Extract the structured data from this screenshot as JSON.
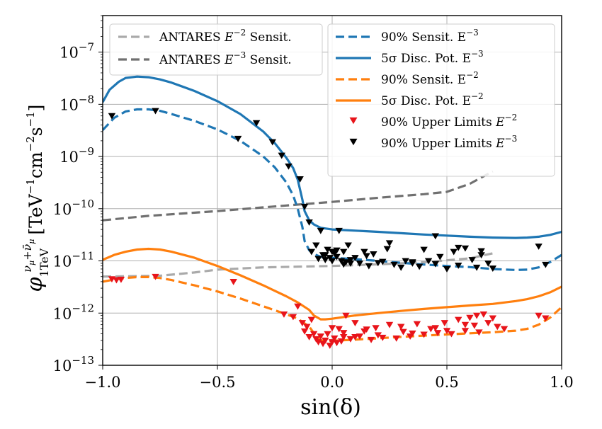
{
  "chart_data": {
    "type": "line",
    "xlabel": "sin(δ)",
    "ylabel": {
      "base": "φ",
      "sub": "1TeV",
      "sup": "ν",
      "sup_sub": "μ",
      "sup_plus": "+",
      "sup_bar": "ν̄",
      "sup_bar_sub": "μ",
      "unit_open": "[TeV",
      "unit_exp1": "−1",
      "unit_cm": "cm",
      "unit_exp2": "−2",
      "unit_s": "s",
      "unit_exp3": "−1",
      "unit_close": "]"
    },
    "xlim": [
      -1.0,
      1.0
    ],
    "ylim_log10": [
      -13,
      -6.3
    ],
    "y_scale": "log",
    "grid": true,
    "legend_placement": "top-right, two boxes",
    "x_ticks": [
      {
        "v": -1.0,
        "label": "−1.0"
      },
      {
        "v": -0.5,
        "label": "−0.5"
      },
      {
        "v": 0.0,
        "label": "0.0"
      },
      {
        "v": 0.5,
        "label": "0.5"
      },
      {
        "v": 1.0,
        "label": "1.0"
      }
    ],
    "y_ticks": [
      {
        "exp": -13,
        "base": "10",
        "exp_label": "−13"
      },
      {
        "exp": -12,
        "base": "10",
        "exp_label": "−12"
      },
      {
        "exp": -11,
        "base": "10",
        "exp_label": "−11"
      },
      {
        "exp": -10,
        "base": "10",
        "exp_label": "−10"
      },
      {
        "exp": -9,
        "base": "10",
        "exp_label": "−9"
      },
      {
        "exp": -8,
        "base": "10",
        "exp_label": "−8"
      },
      {
        "exp": -7,
        "base": "10",
        "exp_label": "−7"
      }
    ],
    "legend_left": [
      {
        "series": "antares_e2",
        "text": "ANTARES ",
        "math": "E",
        "sup": "−2",
        "tail": " Sensit."
      },
      {
        "series": "antares_e3",
        "text": "ANTARES ",
        "math": "E",
        "sup": "−3",
        "tail": " Sensit."
      }
    ],
    "legend_right": [
      {
        "series": "sens_e3",
        "text": "90% Sensit. E",
        "sup": "−3"
      },
      {
        "series": "disc_e3",
        "text": "5σ Disc. Pot. E",
        "sup": "−3"
      },
      {
        "series": "sens_e2",
        "text": "90% Sensit. E",
        "sup": "−2"
      },
      {
        "series": "disc_e2",
        "text": "5σ Disc. Pot. E",
        "sup": "−2"
      },
      {
        "series": "ul_e2",
        "text": "90% Upper Limits ",
        "math": "E",
        "sup": "−2"
      },
      {
        "series": "ul_e3",
        "text": "90% Upper Limits ",
        "math": "E",
        "sup": "−3"
      }
    ],
    "colors": {
      "antares_e2": "#aaaaaa",
      "antares_e3": "#707070",
      "blue": "#1f77b4",
      "orange": "#ff7f0e",
      "red": "#e8141a",
      "black": "#000000"
    },
    "series": [
      {
        "id": "antares_e2",
        "style": "dashed",
        "color": "#aaaaaa",
        "x": [
          -1.0,
          -0.75,
          -0.6,
          -0.5,
          -0.3,
          0.0,
          0.2,
          0.4,
          0.6,
          0.7
        ],
        "y": [
          5e-12,
          5.2e-12,
          6e-12,
          6.8e-12,
          7.5e-12,
          8e-12,
          8.6e-12,
          9.4e-12,
          1.12e-11,
          1.4e-11
        ]
      },
      {
        "id": "antares_e3",
        "style": "dashed",
        "color": "#707070",
        "x": [
          -1.0,
          -0.8,
          -0.5,
          -0.2,
          0.0,
          0.2,
          0.4,
          0.5,
          0.6,
          0.7
        ],
        "y": [
          6e-11,
          7.3e-11,
          9e-11,
          1.15e-10,
          1.35e-10,
          1.62e-10,
          1.9e-10,
          2.1e-10,
          3e-10,
          5.2e-10
        ]
      },
      {
        "id": "sens_e3",
        "style": "dashed",
        "color": "#1f77b4",
        "x": [
          -1.0,
          -0.95,
          -0.9,
          -0.85,
          -0.8,
          -0.75,
          -0.7,
          -0.6,
          -0.5,
          -0.4,
          -0.3,
          -0.25,
          -0.2,
          -0.17,
          -0.15,
          -0.13,
          -0.12,
          -0.1,
          -0.08,
          -0.05,
          0.0,
          0.1,
          0.2,
          0.3,
          0.4,
          0.5,
          0.6,
          0.7,
          0.8,
          0.85,
          0.9,
          0.95,
          1.0
        ],
        "y": [
          3.2e-09,
          5.5e-09,
          7.3e-09,
          8e-09,
          8e-09,
          7.5e-09,
          6.5e-09,
          4.8e-09,
          3.3e-09,
          2e-09,
          1e-09,
          6.2e-10,
          3.2e-10,
          1.8e-10,
          1e-10,
          4.5e-11,
          2.4e-11,
          1.6e-11,
          1.35e-11,
          1.2e-11,
          1.15e-11,
          1.08e-11,
          1e-11,
          9.2e-12,
          8.5e-12,
          8e-12,
          7.6e-12,
          7e-12,
          6.7e-12,
          6.8e-12,
          7.5e-12,
          9.5e-12,
          1.3e-11
        ]
      },
      {
        "id": "disc_e3",
        "style": "solid",
        "color": "#1f77b4",
        "x": [
          -1.0,
          -0.97,
          -0.93,
          -0.9,
          -0.85,
          -0.8,
          -0.75,
          -0.7,
          -0.6,
          -0.5,
          -0.4,
          -0.3,
          -0.25,
          -0.2,
          -0.17,
          -0.15,
          -0.13,
          -0.12,
          -0.1,
          -0.08,
          -0.05,
          0.0,
          0.1,
          0.2,
          0.3,
          0.4,
          0.5,
          0.6,
          0.7,
          0.8,
          0.85,
          0.9,
          0.95,
          1.0
        ],
        "y": [
          1.1e-08,
          1.9e-08,
          2.7e-08,
          3.2e-08,
          3.4e-08,
          3.3e-08,
          3e-08,
          2.6e-08,
          1.8e-08,
          1.15e-08,
          6.5e-09,
          3e-09,
          1.8e-09,
          9.5e-10,
          6e-10,
          3.6e-10,
          1.5e-10,
          9e-11,
          6e-11,
          5e-11,
          4.3e-11,
          4e-11,
          3.8e-11,
          3.6e-11,
          3.4e-11,
          3.2e-11,
          3.05e-11,
          2.9e-11,
          2.8e-11,
          2.75e-11,
          2.8e-11,
          2.9e-11,
          3.15e-11,
          3.6e-11
        ]
      },
      {
        "id": "sens_e2",
        "style": "dashed",
        "color": "#ff7f0e",
        "x": [
          -1.0,
          -0.95,
          -0.9,
          -0.85,
          -0.8,
          -0.75,
          -0.7,
          -0.6,
          -0.5,
          -0.4,
          -0.3,
          -0.2,
          -0.15,
          -0.1,
          -0.07,
          -0.05,
          -0.03,
          0.0,
          0.1,
          0.2,
          0.3,
          0.4,
          0.5,
          0.6,
          0.7,
          0.8,
          0.85,
          0.9,
          0.95,
          1.0
        ],
        "y": [
          4e-12,
          4.4e-12,
          4.7e-12,
          4.9e-12,
          4.9e-12,
          4.7e-12,
          4.3e-12,
          3.4e-12,
          2.6e-12,
          1.9e-12,
          1.35e-12,
          9.5e-13,
          7.8e-13,
          5.5e-13,
          3.6e-13,
          3e-13,
          2.9e-13,
          2.95e-13,
          3.1e-13,
          3.3e-13,
          3.5e-13,
          3.7e-13,
          3.9e-13,
          4.1e-13,
          4.3e-13,
          4.6e-13,
          5e-13,
          6e-13,
          8.2e-13,
          1.3e-12
        ]
      },
      {
        "id": "disc_e2",
        "style": "solid",
        "color": "#ff7f0e",
        "x": [
          -1.0,
          -0.95,
          -0.9,
          -0.85,
          -0.8,
          -0.75,
          -0.7,
          -0.6,
          -0.5,
          -0.4,
          -0.3,
          -0.2,
          -0.15,
          -0.1,
          -0.08,
          -0.05,
          -0.03,
          0.0,
          0.1,
          0.2,
          0.3,
          0.4,
          0.5,
          0.6,
          0.7,
          0.8,
          0.85,
          0.9,
          0.95,
          1.0
        ],
        "y": [
          1.05e-11,
          1.3e-11,
          1.5e-11,
          1.65e-11,
          1.7e-11,
          1.65e-11,
          1.5e-11,
          1.15e-11,
          8e-12,
          5.3e-12,
          3.4e-12,
          2.1e-12,
          1.6e-12,
          1.15e-12,
          9e-13,
          7.6e-13,
          7.6e-13,
          7.8e-13,
          9e-13,
          1e-12,
          1.1e-12,
          1.2e-12,
          1.3e-12,
          1.4e-12,
          1.5e-12,
          1.7e-12,
          1.85e-12,
          2.1e-12,
          2.5e-12,
          3.2e-12
        ]
      }
    ],
    "markers": [
      {
        "id": "ul_e3",
        "color": "#000000",
        "marker": "triangle-down",
        "x": [
          -0.96,
          -0.77,
          -0.41,
          -0.33,
          -0.26,
          -0.22,
          -0.19,
          -0.14,
          -0.12,
          -0.1,
          -0.09,
          -0.07,
          -0.06,
          -0.05,
          -0.04,
          -0.03,
          -0.02,
          -0.01,
          0.0,
          0.01,
          0.02,
          0.03,
          0.04,
          0.05,
          0.06,
          0.07,
          0.08,
          0.1,
          0.12,
          0.14,
          0.16,
          0.18,
          0.2,
          0.22,
          0.24,
          0.27,
          0.3,
          0.32,
          0.35,
          0.38,
          0.4,
          0.42,
          0.45,
          0.47,
          0.5,
          0.53,
          0.55,
          0.58,
          0.61,
          0.63,
          0.65,
          0.68,
          0.7,
          0.02,
          0.08,
          0.15,
          0.25,
          0.35,
          0.45,
          0.55,
          0.65,
          0.9,
          0.93,
          -0.03,
          0.0,
          0.05
        ],
        "y": [
          6e-09,
          7.5e-09,
          2.2e-09,
          4.4e-09,
          1.9e-09,
          1.05e-09,
          6.5e-10,
          3.7e-10,
          1.1e-10,
          5.5e-11,
          1.5e-11,
          2e-11,
          1.1e-11,
          3.8e-11,
          1.3e-11,
          1.05e-11,
          1.65e-11,
          1.15e-11,
          1e-11,
          1.4e-11,
          1.2e-11,
          3.8e-11,
          1e-11,
          1.5e-11,
          9.5e-12,
          2e-11,
          1.05e-11,
          1.15e-11,
          9e-12,
          1.5e-11,
          8e-12,
          1.35e-11,
          9.2e-12,
          9.7e-12,
          1.7e-11,
          8.5e-12,
          7.5e-12,
          1e-11,
          9e-12,
          7.8e-12,
          1.65e-11,
          1e-11,
          8.8e-12,
          1.2e-11,
          7e-12,
          1.5e-11,
          8.2e-12,
          1.75e-11,
          1.05e-11,
          7.5e-12,
          1.55e-11,
          9e-12,
          7.2e-12,
          1.6e-11,
          9e-12,
          1.25e-11,
          2.2e-11,
          9.5e-12,
          3e-11,
          1.8e-11,
          1.3e-11,
          1.9e-11,
          8.5e-12,
          1.3e-11,
          1.5e-11,
          8.6e-12
        ]
      },
      {
        "id": "ul_e2",
        "color": "#e8141a",
        "marker": "triangle-down",
        "x": [
          -0.96,
          -0.94,
          -0.92,
          -0.77,
          -0.43,
          -0.21,
          -0.17,
          -0.15,
          -0.13,
          -0.12,
          -0.11,
          -0.1,
          -0.09,
          -0.08,
          -0.07,
          -0.06,
          -0.05,
          -0.04,
          -0.03,
          -0.02,
          -0.01,
          0.0,
          0.01,
          0.02,
          0.03,
          0.04,
          0.05,
          0.06,
          0.08,
          0.1,
          0.12,
          0.14,
          0.17,
          0.19,
          0.22,
          0.25,
          0.28,
          0.31,
          0.34,
          0.37,
          0.4,
          0.43,
          0.46,
          0.49,
          0.52,
          0.55,
          0.58,
          0.6,
          0.62,
          0.64,
          0.66,
          0.68,
          0.7,
          0.72,
          0.75,
          0.9,
          0.93,
          0.0,
          0.05,
          0.1,
          0.15,
          0.2,
          0.3,
          0.35,
          0.45,
          0.5,
          0.58,
          0.63
        ],
        "y": [
          4.5e-12,
          4.3e-12,
          4.4e-12,
          5e-12,
          4e-12,
          9.5e-13,
          8.5e-13,
          1.35e-12,
          6.5e-13,
          4.5e-13,
          5.5e-13,
          3.5e-13,
          7.5e-13,
          4e-13,
          3.2e-13,
          2.8e-13,
          3.6e-13,
          2.6e-13,
          3e-13,
          4e-13,
          2.4e-13,
          2.8e-13,
          3.3e-13,
          2.7e-13,
          5e-13,
          2.9e-13,
          3.5e-13,
          9e-13,
          3.2e-13,
          6.5e-13,
          3.6e-13,
          4.5e-13,
          3.1e-13,
          5.2e-13,
          3.4e-13,
          6e-13,
          3.3e-13,
          4.4e-13,
          3.6e-13,
          6.2e-13,
          3.9e-13,
          5e-13,
          4.2e-13,
          6.5e-13,
          4e-13,
          7.5e-13,
          4.6e-13,
          8.2e-13,
          5.8e-13,
          4.3e-13,
          9.5e-13,
          6.5e-13,
          8e-13,
          5.5e-13,
          5e-13,
          9e-13,
          8e-13,
          5.2e-13,
          4.2e-13,
          3.5e-13,
          4.9e-13,
          3.8e-13,
          5.5e-13,
          4.1e-13,
          5.2e-13,
          4.6e-13,
          6e-13,
          9e-13
        ]
      }
    ]
  }
}
